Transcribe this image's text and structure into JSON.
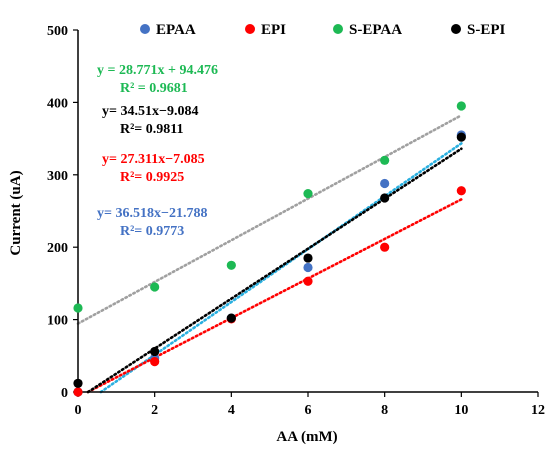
{
  "chart_data": {
    "type": "scatter",
    "xlabel": "AA (mM)",
    "ylabel": "Current (uA)",
    "xlim": [
      0,
      12
    ],
    "ylim": [
      0,
      500
    ],
    "x_ticks": [
      0,
      2,
      4,
      6,
      8,
      10,
      12
    ],
    "y_ticks": [
      0,
      100,
      200,
      300,
      400,
      500
    ],
    "grid": false,
    "legend_position": "top",
    "series": [
      {
        "name": "EPAA",
        "color": "#4472c4",
        "x": [
          0,
          2,
          4,
          6,
          8,
          10
        ],
        "y": [
          0,
          47,
          102,
          172,
          288,
          355
        ],
        "trendline": {
          "slope": 36.518,
          "intercept": -21.788,
          "color": "#2ab0e0",
          "equation": "y= 36.518x−21.788",
          "r2": "R²= 0.9773",
          "label_color": "#4472c4"
        }
      },
      {
        "name": "EPI",
        "color": "#ff0000",
        "x": [
          0,
          2,
          4,
          6,
          8,
          10
        ],
        "y": [
          0,
          42,
          101,
          153,
          200,
          278
        ],
        "trendline": {
          "slope": 27.311,
          "intercept": -7.085,
          "color": "#ff0000",
          "equation": "y= 27.311x−7.085",
          "r2": "R²= 0.9925",
          "label_color": "#ff0000"
        }
      },
      {
        "name": "S-EPAA",
        "color": "#1db954",
        "x": [
          0,
          2,
          4,
          6,
          8,
          10
        ],
        "y": [
          116,
          145,
          175,
          274,
          320,
          395
        ],
        "trendline": {
          "slope": 28.771,
          "intercept": 94.476,
          "color": "#a0a0a0",
          "equation": "y = 28.771x + 94.476",
          "r2": "R² = 0.9681",
          "label_color": "#1db954"
        }
      },
      {
        "name": "S-EPI",
        "color": "#000000",
        "x": [
          0,
          2,
          4,
          6,
          8,
          10
        ],
        "y": [
          12,
          56,
          102,
          185,
          268,
          352
        ],
        "trendline": {
          "slope": 34.51,
          "intercept": -9.084,
          "color": "#000000",
          "equation": "y= 34.51x−9.084",
          "r2": "R²= 0.9811",
          "label_color": "#000000"
        }
      }
    ]
  }
}
